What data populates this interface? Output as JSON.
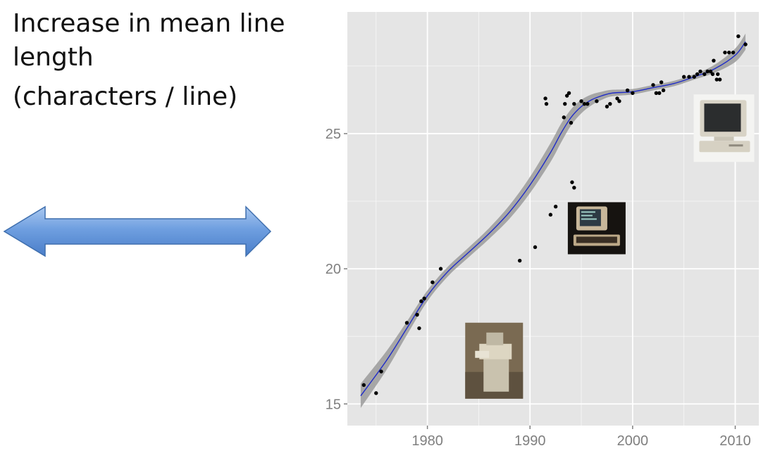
{
  "slide": {
    "title": "Increase in mean line length",
    "subtitle": "(characters / line)"
  },
  "chart_data": {
    "type": "scatter",
    "title": "",
    "xlabel": "",
    "ylabel": "",
    "xlim": [
      1972.2,
      2012.3
    ],
    "ylim": [
      14.2,
      29.5
    ],
    "xticks": [
      1980,
      1990,
      2000,
      2010
    ],
    "yticks": [
      15,
      20,
      25
    ],
    "grid": true,
    "points": [
      [
        1973.8,
        15.7
      ],
      [
        1975.0,
        15.4
      ],
      [
        1975.5,
        16.2
      ],
      [
        1978.0,
        18.0
      ],
      [
        1979.0,
        18.3
      ],
      [
        1979.2,
        17.8
      ],
      [
        1979.4,
        18.8
      ],
      [
        1979.7,
        18.9
      ],
      [
        1980.5,
        19.5
      ],
      [
        1981.3,
        20.0
      ],
      [
        1989.0,
        20.3
      ],
      [
        1990.5,
        20.8
      ],
      [
        1992.0,
        22.0
      ],
      [
        1992.5,
        22.3
      ],
      [
        1991.5,
        26.3
      ],
      [
        1991.6,
        26.1
      ],
      [
        1993.3,
        25.6
      ],
      [
        1993.4,
        26.1
      ],
      [
        1993.6,
        26.4
      ],
      [
        1993.8,
        26.5
      ],
      [
        1994.0,
        25.4
      ],
      [
        1994.1,
        23.2
      ],
      [
        1994.3,
        23.0
      ],
      [
        1994.3,
        26.1
      ],
      [
        1995.0,
        26.2
      ],
      [
        1995.3,
        26.1
      ],
      [
        1995.6,
        26.1
      ],
      [
        1996.5,
        26.2
      ],
      [
        1997.5,
        26.0
      ],
      [
        1997.8,
        26.1
      ],
      [
        1998.5,
        26.3
      ],
      [
        1998.7,
        26.2
      ],
      [
        1999.5,
        26.6
      ],
      [
        2000.0,
        26.5
      ],
      [
        2002.0,
        26.8
      ],
      [
        2002.3,
        26.5
      ],
      [
        2002.6,
        26.5
      ],
      [
        2002.8,
        26.9
      ],
      [
        2003.0,
        26.6
      ],
      [
        2005.0,
        27.1
      ],
      [
        2005.5,
        27.1
      ],
      [
        2006.0,
        27.1
      ],
      [
        2006.3,
        27.2
      ],
      [
        2006.6,
        27.3
      ],
      [
        2007.0,
        27.2
      ],
      [
        2007.3,
        27.3
      ],
      [
        2007.6,
        27.3
      ],
      [
        2007.8,
        27.2
      ],
      [
        2007.9,
        27.7
      ],
      [
        2008.2,
        27.0
      ],
      [
        2008.3,
        27.2
      ],
      [
        2008.5,
        27.0
      ],
      [
        2009.0,
        28.0
      ],
      [
        2009.4,
        28.0
      ],
      [
        2009.8,
        28.0
      ],
      [
        2010.3,
        28.6
      ],
      [
        2011.0,
        28.3
      ]
    ],
    "smooth_fit": {
      "x": [
        1973.5,
        1976,
        1978,
        1980,
        1982,
        1984,
        1986,
        1988,
        1990,
        1992,
        1993,
        1994,
        1995,
        1996,
        1997,
        1998,
        2000,
        2002,
        2004,
        2006,
        2008,
        2010,
        2011
      ],
      "y": [
        15.3,
        16.6,
        17.8,
        19.0,
        19.9,
        20.6,
        21.3,
        22.1,
        23.1,
        24.3,
        25.0,
        25.6,
        26.0,
        26.25,
        26.4,
        26.5,
        26.55,
        26.7,
        26.85,
        27.1,
        27.4,
        27.9,
        28.4
      ],
      "ci_half_width": [
        0.45,
        0.35,
        0.25,
        0.2,
        0.18,
        0.18,
        0.2,
        0.25,
        0.3,
        0.35,
        0.35,
        0.3,
        0.25,
        0.2,
        0.15,
        0.12,
        0.1,
        0.1,
        0.1,
        0.1,
        0.15,
        0.25,
        0.3
      ],
      "line_color": "#1f2bc9",
      "band_color": "#9b9b9b"
    },
    "images": [
      {
        "icon": "teletype-terminal-photo",
        "x_center": 1986.5,
        "y_center": 16.6
      },
      {
        "icon": "video-terminal-photo",
        "x_center": 1996.5,
        "y_center": 21.5
      },
      {
        "icon": "desktop-computer-photo",
        "x_center": 2008.9,
        "y_center": 25.2
      }
    ]
  },
  "colors": {
    "panel": "#e5e5e5",
    "grid": "#ffffff",
    "axis_text": "#7f7f7f",
    "point": "#000000",
    "arrow_fill": "#5b8fd6",
    "arrow_stroke": "#3f6fae"
  }
}
